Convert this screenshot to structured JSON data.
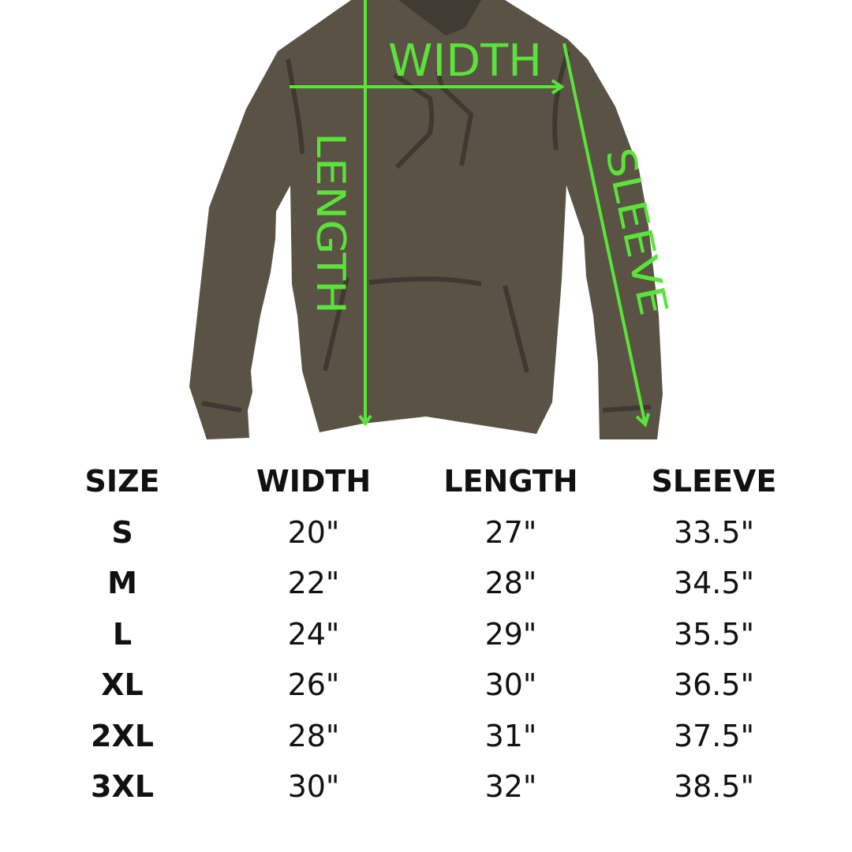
{
  "diagram": {
    "labels": {
      "width": "WIDTH",
      "length": "LENGTH",
      "sleeve": "SLEEVE"
    },
    "colors": {
      "garment": "#5a5345",
      "hood_inner": "#403c33",
      "seams": "#3f3a31",
      "measure_lines": "#5ae43a"
    }
  },
  "size_table": {
    "headers": [
      "SIZE",
      "WIDTH",
      "LENGTH",
      "SLEEVE"
    ],
    "rows": [
      [
        "S",
        "20\"",
        "27\"",
        "33.5\""
      ],
      [
        "M",
        "22\"",
        "28\"",
        "34.5\""
      ],
      [
        "L",
        "24\"",
        "29\"",
        "35.5\""
      ],
      [
        "XL",
        "26\"",
        "30\"",
        "36.5\""
      ],
      [
        "2XL",
        "28\"",
        "31\"",
        "37.5\""
      ],
      [
        "3XL",
        "30\"",
        "32\"",
        "38.5\""
      ]
    ]
  }
}
